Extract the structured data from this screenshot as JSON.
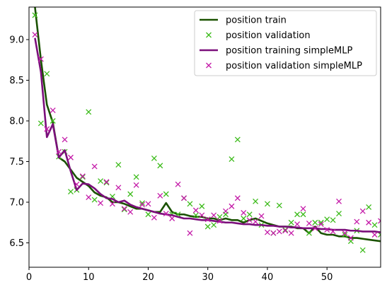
{
  "chart_data": {
    "type": "line",
    "title": "",
    "xlabel": "",
    "ylabel": "",
    "xlim": [
      0,
      59
    ],
    "ylim": [
      6.2,
      9.4
    ],
    "xticks": [
      0,
      10,
      20,
      30,
      40,
      50
    ],
    "yticks": [
      6.5,
      7.0,
      7.5,
      8.0,
      8.5,
      9.0
    ],
    "xtick_labels": [
      "0",
      "10",
      "20",
      "30",
      "40",
      "50"
    ],
    "ytick_labels": [
      "6.5",
      "7.0",
      "7.5",
      "8.0",
      "8.5",
      "9.0"
    ],
    "grid": false,
    "legend_position": "top-right",
    "legend": [
      {
        "label": "position train",
        "kind": "line",
        "color": "#1a5200"
      },
      {
        "label": "position validation",
        "kind": "marker",
        "color": "#3cbb1a"
      },
      {
        "label": "position training simpleMLP",
        "kind": "line",
        "color": "#7b0f7b"
      },
      {
        "label": "position validation simpleMLP",
        "kind": "marker",
        "color": "#c41aa8"
      }
    ],
    "series": [
      {
        "name": "position train",
        "style": "line",
        "color": "#1a5200",
        "x": [
          0,
          1,
          2,
          3,
          4,
          5,
          6,
          7,
          8,
          9,
          10,
          11,
          12,
          13,
          14,
          15,
          16,
          17,
          18,
          19,
          20,
          21,
          22,
          23,
          24,
          25,
          26,
          27,
          28,
          29,
          30,
          31,
          32,
          33,
          34,
          35,
          36,
          37,
          38,
          39,
          40,
          41,
          42,
          43,
          44,
          45,
          46,
          47,
          48,
          49,
          50,
          51,
          52,
          53,
          54,
          55,
          56,
          57,
          58,
          59
        ],
        "y": [
          11.1,
          9.4,
          8.75,
          8.2,
          7.98,
          7.55,
          7.5,
          7.4,
          7.3,
          7.25,
          7.2,
          7.12,
          7.08,
          7.06,
          7.0,
          7.0,
          6.98,
          6.95,
          6.92,
          6.92,
          6.9,
          6.88,
          6.88,
          6.99,
          6.88,
          6.85,
          6.85,
          6.83,
          6.82,
          6.82,
          6.8,
          6.8,
          6.78,
          6.8,
          6.78,
          6.78,
          6.75,
          6.78,
          6.8,
          6.77,
          6.74,
          6.72,
          6.7,
          6.7,
          6.7,
          6.68,
          6.68,
          6.62,
          6.7,
          6.62,
          6.6,
          6.6,
          6.58,
          6.58,
          6.56,
          6.56,
          6.55,
          6.54,
          6.53,
          6.52
        ]
      },
      {
        "name": "position validation",
        "style": "marker",
        "color": "#3cbb1a",
        "x": [
          1,
          2,
          3,
          4,
          5,
          6,
          7,
          8,
          9,
          10,
          11,
          12,
          13,
          14,
          15,
          16,
          17,
          18,
          19,
          20,
          21,
          22,
          23,
          24,
          25,
          26,
          27,
          28,
          29,
          30,
          31,
          32,
          33,
          34,
          35,
          36,
          37,
          38,
          39,
          40,
          41,
          42,
          43,
          44,
          45,
          46,
          47,
          48,
          49,
          50,
          51,
          52,
          53,
          54,
          55,
          56,
          57,
          58,
          59
        ],
        "y": [
          9.3,
          7.97,
          8.58,
          8.0,
          7.56,
          7.62,
          7.13,
          7.15,
          7.31,
          8.11,
          7.03,
          7.26,
          7.24,
          7.07,
          7.46,
          6.91,
          7.1,
          7.31,
          6.99,
          6.85,
          7.54,
          7.45,
          7.1,
          6.85,
          6.85,
          7.05,
          6.98,
          6.84,
          6.95,
          6.7,
          6.72,
          6.82,
          6.85,
          7.53,
          7.77,
          6.8,
          6.85,
          7.01,
          6.72,
          6.98,
          6.62,
          6.96,
          6.66,
          6.75,
          6.85,
          6.85,
          6.62,
          6.75,
          6.75,
          6.79,
          6.78,
          6.86,
          6.6,
          6.52,
          6.65,
          6.41,
          6.94,
          6.72,
          6.6
        ]
      },
      {
        "name": "position training simpleMLP",
        "style": "line",
        "color": "#7b0f7b",
        "x": [
          1,
          2,
          3,
          4,
          5,
          6,
          7,
          8,
          9,
          10,
          11,
          12,
          13,
          14,
          15,
          16,
          17,
          18,
          19,
          20,
          21,
          22,
          23,
          24,
          25,
          26,
          27,
          28,
          29,
          30,
          31,
          32,
          33,
          34,
          35,
          36,
          37,
          38,
          39,
          40,
          41,
          42,
          43,
          44,
          45,
          46,
          47,
          48,
          49,
          50,
          51,
          52,
          53,
          54,
          55,
          56,
          57,
          58,
          59
        ],
        "y": [
          9.02,
          8.6,
          7.8,
          7.96,
          7.55,
          7.64,
          7.38,
          7.15,
          7.23,
          7.22,
          7.17,
          7.1,
          7.05,
          7.04,
          7.0,
          7.02,
          6.97,
          6.94,
          6.92,
          6.9,
          6.88,
          6.86,
          6.85,
          6.84,
          6.82,
          6.8,
          6.8,
          6.79,
          6.78,
          6.78,
          6.77,
          6.76,
          6.75,
          6.75,
          6.74,
          6.73,
          6.73,
          6.72,
          6.72,
          6.71,
          6.71,
          6.7,
          6.7,
          6.69,
          6.69,
          6.68,
          6.68,
          6.68,
          6.67,
          6.67,
          6.66,
          6.66,
          6.66,
          6.65,
          6.65,
          6.64,
          6.64,
          6.64,
          6.63
        ]
      },
      {
        "name": "position validation simpleMLP",
        "style": "marker",
        "color": "#c41aa8",
        "x": [
          1,
          2,
          3,
          4,
          5,
          6,
          7,
          8,
          9,
          10,
          11,
          12,
          13,
          14,
          15,
          16,
          17,
          18,
          19,
          20,
          21,
          22,
          23,
          24,
          25,
          26,
          27,
          28,
          29,
          30,
          31,
          32,
          33,
          34,
          35,
          36,
          37,
          38,
          39,
          40,
          41,
          42,
          43,
          44,
          45,
          46,
          47,
          48,
          49,
          50,
          51,
          52,
          53,
          54,
          55,
          56,
          57,
          58,
          59
        ],
        "y": [
          9.06,
          8.76,
          7.9,
          8.13,
          7.62,
          7.77,
          7.55,
          7.22,
          7.32,
          7.06,
          7.44,
          6.99,
          7.25,
          6.98,
          7.18,
          6.92,
          6.88,
          7.21,
          6.97,
          6.98,
          6.81,
          7.08,
          6.86,
          6.8,
          7.22,
          7.05,
          6.62,
          6.9,
          6.84,
          6.79,
          6.84,
          6.77,
          6.89,
          6.95,
          7.05,
          6.87,
          6.78,
          6.76,
          6.83,
          6.63,
          6.62,
          6.64,
          6.65,
          6.62,
          6.73,
          6.92,
          6.74,
          6.68,
          6.73,
          6.66,
          6.64,
          7.01,
          6.62,
          6.56,
          6.76,
          6.89,
          6.75,
          6.6,
          6.77
        ]
      }
    ]
  }
}
